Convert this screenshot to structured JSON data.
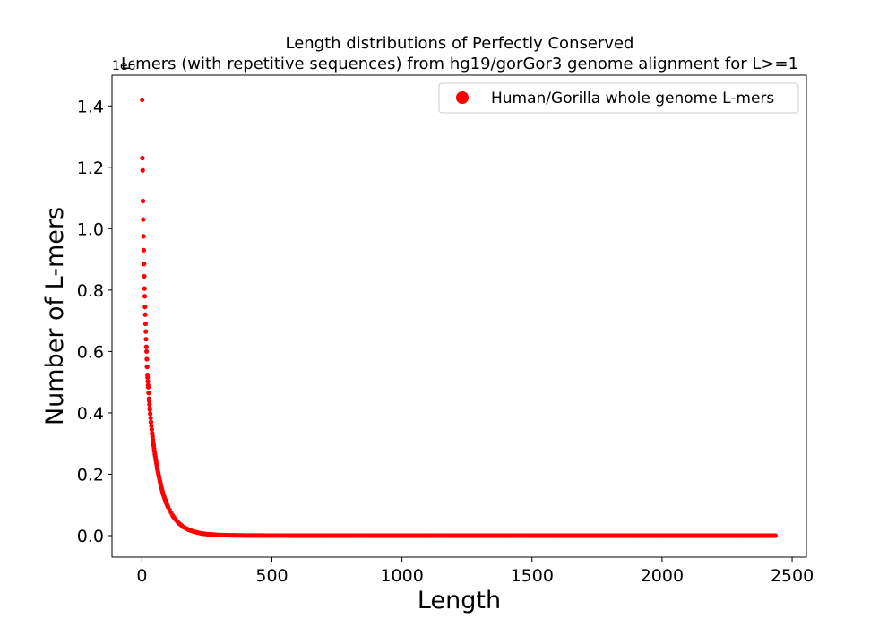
{
  "chart_data": {
    "type": "scatter",
    "title": "Length distributions of Perfectly Conserved\nL-mers (with repetitive sequences) from hg19/gorGor3 genome alignment for L>=1",
    "xlabel": "Length",
    "ylabel": "Number of L-mers",
    "y_offset_label": "1e6",
    "xlim": [
      -115,
      2555
    ],
    "ylim": [
      -0.07,
      1.5
    ],
    "xticks": [
      0,
      500,
      1000,
      1500,
      2000,
      2500
    ],
    "yticks": [
      0.0,
      0.2,
      0.4,
      0.6,
      0.8,
      1.0,
      1.2,
      1.4
    ],
    "xtick_labels": [
      "0",
      "500",
      "1000",
      "1500",
      "2000",
      "2500"
    ],
    "ytick_labels": [
      "0.0",
      "0.2",
      "0.4",
      "0.6",
      "0.8",
      "1.0",
      "1.2",
      "1.4"
    ],
    "grid": false,
    "legend_position": "top-right",
    "marker_color": "#ff0000",
    "series": [
      {
        "name": "Human/Gorilla whole genome L-mers",
        "x": [
          1,
          2,
          3,
          4,
          5,
          6,
          7,
          8,
          9,
          10,
          11,
          12,
          13,
          14,
          15,
          16,
          17,
          18,
          19,
          20,
          22,
          24,
          26,
          28,
          30,
          35,
          40,
          45,
          50,
          60,
          70,
          80,
          90,
          100,
          120,
          140,
          160,
          180,
          200,
          230,
          260,
          300,
          350,
          400,
          500,
          600,
          700,
          800,
          900,
          1000,
          1100,
          1200,
          1300,
          1400,
          1500,
          1600,
          1700,
          1800,
          1900,
          2000,
          2100,
          2200,
          2300,
          2400,
          2436
        ],
        "y": [
          1.42,
          1.23,
          1.19,
          1.09,
          1.03,
          0.975,
          0.93,
          0.885,
          0.845,
          0.805,
          0.78,
          0.745,
          0.72,
          0.69,
          0.665,
          0.64,
          0.615,
          0.6,
          0.575,
          0.55,
          0.515,
          0.49,
          0.465,
          0.44,
          0.415,
          0.37,
          0.33,
          0.295,
          0.265,
          0.215,
          0.175,
          0.14,
          0.115,
          0.094,
          0.063,
          0.042,
          0.028,
          0.019,
          0.013,
          0.007,
          0.004,
          0.002,
          0.001,
          0.0005,
          0.0002,
          0.0001,
          5e-05,
          3e-05,
          2e-05,
          1e-05,
          0.0,
          0.0,
          0.0,
          0.0,
          0.0,
          0.0,
          0.0,
          0.0,
          0.0,
          0.0,
          0.0,
          0.0,
          0.0,
          0.0,
          0.0
        ]
      }
    ]
  }
}
